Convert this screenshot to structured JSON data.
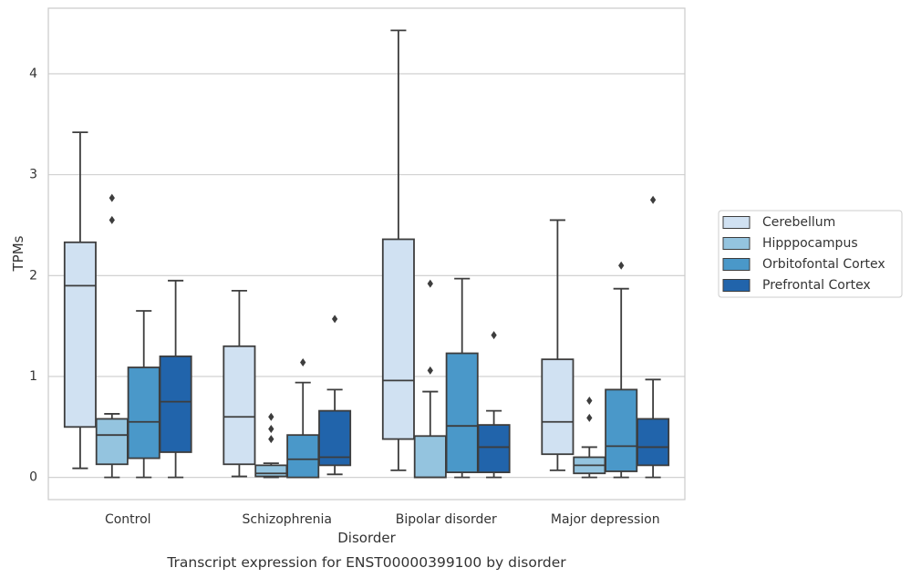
{
  "caption": "Transcript expression for ENST00000399100 by disorder",
  "chart_data": {
    "type": "box",
    "title": "",
    "xlabel": "Disorder",
    "ylabel": "TPMs",
    "ylim": [
      -0.22,
      4.65
    ],
    "yticks": [
      0,
      1,
      2,
      3,
      4
    ],
    "grid": true,
    "legend_position": "right",
    "categories": [
      "Control",
      "Schizophrenia",
      "Bipolar disorder",
      "Major depression"
    ],
    "series": [
      {
        "name": "Cerebellum",
        "color": "#d0e1f2",
        "boxes": [
          {
            "whislo": 0.09,
            "q1": 0.5,
            "med": 1.9,
            "q3": 2.33,
            "whishi": 3.42,
            "fliers": []
          },
          {
            "whislo": 0.01,
            "q1": 0.13,
            "med": 0.6,
            "q3": 1.3,
            "whishi": 1.85,
            "fliers": []
          },
          {
            "whislo": 0.07,
            "q1": 0.38,
            "med": 0.96,
            "q3": 2.36,
            "whishi": 4.43,
            "fliers": []
          },
          {
            "whislo": 0.07,
            "q1": 0.23,
            "med": 0.55,
            "q3": 1.17,
            "whishi": 2.55,
            "fliers": []
          }
        ]
      },
      {
        "name": "Hipppocampus",
        "color": "#94c4df",
        "boxes": [
          {
            "whislo": 0.0,
            "q1": 0.13,
            "med": 0.42,
            "q3": 0.58,
            "whishi": 0.63,
            "fliers": [
              2.55,
              2.77
            ]
          },
          {
            "whislo": 0.0,
            "q1": 0.01,
            "med": 0.04,
            "q3": 0.12,
            "whishi": 0.14,
            "fliers": [
              0.38,
              0.48,
              0.6
            ]
          },
          {
            "whislo": 0.0,
            "q1": 0.0,
            "med": 0.0,
            "q3": 0.41,
            "whishi": 0.85,
            "fliers": [
              1.06,
              1.92
            ]
          },
          {
            "whislo": 0.0,
            "q1": 0.04,
            "med": 0.12,
            "q3": 0.2,
            "whishi": 0.3,
            "fliers": [
              0.59,
              0.76
            ]
          }
        ]
      },
      {
        "name": "Orbitofontal Cortex",
        "color": "#4a98c9",
        "boxes": [
          {
            "whislo": 0.0,
            "q1": 0.19,
            "med": 0.55,
            "q3": 1.09,
            "whishi": 1.65,
            "fliers": []
          },
          {
            "whislo": 0.0,
            "q1": 0.0,
            "med": 0.18,
            "q3": 0.42,
            "whishi": 0.94,
            "fliers": [
              1.14
            ]
          },
          {
            "whislo": 0.0,
            "q1": 0.05,
            "med": 0.51,
            "q3": 1.23,
            "whishi": 1.97,
            "fliers": []
          },
          {
            "whislo": 0.0,
            "q1": 0.06,
            "med": 0.31,
            "q3": 0.87,
            "whishi": 1.87,
            "fliers": [
              2.1
            ]
          }
        ]
      },
      {
        "name": "Prefrontal Cortex",
        "color": "#2164ab",
        "boxes": [
          {
            "whislo": 0.0,
            "q1": 0.25,
            "med": 0.75,
            "q3": 1.2,
            "whishi": 1.95,
            "fliers": []
          },
          {
            "whislo": 0.03,
            "q1": 0.12,
            "med": 0.2,
            "q3": 0.66,
            "whishi": 0.87,
            "fliers": [
              1.57
            ]
          },
          {
            "whislo": 0.0,
            "q1": 0.05,
            "med": 0.3,
            "q3": 0.52,
            "whishi": 0.66,
            "fliers": [
              1.41
            ]
          },
          {
            "whislo": 0.0,
            "q1": 0.12,
            "med": 0.3,
            "q3": 0.58,
            "whishi": 0.97,
            "fliers": [
              2.75
            ]
          }
        ]
      }
    ]
  }
}
